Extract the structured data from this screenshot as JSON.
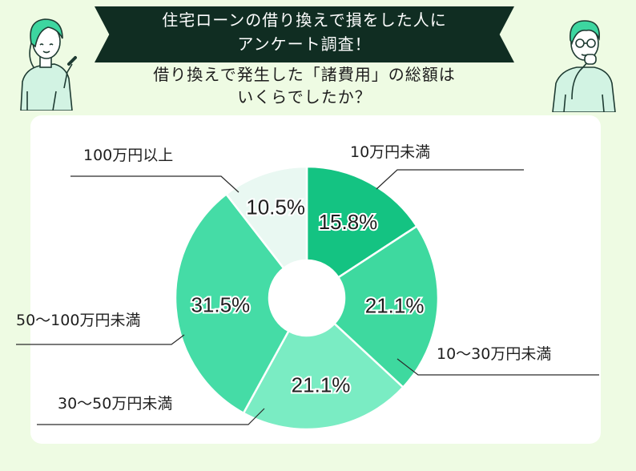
{
  "header": {
    "title_line1": "住宅ローンの借り換えで損をした人に",
    "title_line2": "アンケート調査！",
    "question_line1": "借り換えで発生した「諸費用」の総額は",
    "question_line2": "いくらでしたか？"
  },
  "colors": {
    "background": "#eefbe3",
    "banner": "#102d22",
    "card": "#ffffff"
  },
  "chart_data": {
    "type": "pie",
    "donut": true,
    "unit": "%",
    "slices": [
      {
        "label": "10万円未満",
        "value": 15.8,
        "display": "15.8%",
        "color": "#14c382"
      },
      {
        "label": "10〜30万円未満",
        "value": 21.1,
        "display": "21.1%",
        "color": "#3ed99f"
      },
      {
        "label": "30〜50万円未満",
        "value": 21.1,
        "display": "21.1%",
        "color": "#7aecc3"
      },
      {
        "label": "50〜100万円未満",
        "value": 31.5,
        "display": "31.5%",
        "color": "#45dca6"
      },
      {
        "label": "100万円以上",
        "value": 10.5,
        "display": "10.5%",
        "color": "#e9f8f2"
      }
    ]
  }
}
